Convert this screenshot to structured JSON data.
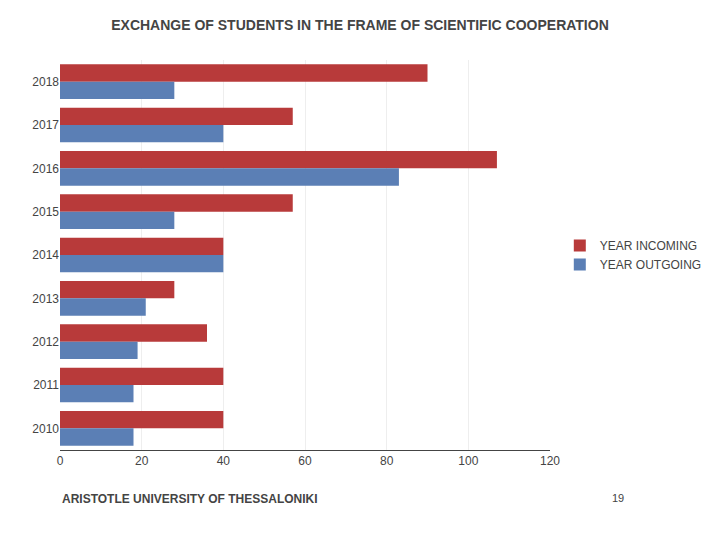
{
  "chart_data": {
    "type": "bar",
    "orientation": "horizontal",
    "title": "EXCHANGE OF STUDENTS IN THE FRAME OF SCIENTIFIC COOPERATION",
    "categories": [
      "2018",
      "2017",
      "2016",
      "2015",
      "2014",
      "2013",
      "2012",
      "2011",
      "2010"
    ],
    "series": [
      {
        "name": "YEAR INCOMING",
        "color": "#B83A3A",
        "values": [
          90,
          57,
          107,
          57,
          40,
          28,
          36,
          40,
          40
        ]
      },
      {
        "name": "YEAR OUTGOING",
        "color": "#5B7FB5",
        "values": [
          28,
          40,
          83,
          28,
          40,
          21,
          19,
          18,
          18
        ]
      }
    ],
    "xlim": [
      0,
      120
    ],
    "xticks": [
      0,
      20,
      40,
      60,
      80,
      100,
      120
    ],
    "grid": true,
    "legend": "right",
    "annotations": [
      "ARISTOTLE UNIVERSITY OF THESSALONIKI",
      "19"
    ]
  }
}
